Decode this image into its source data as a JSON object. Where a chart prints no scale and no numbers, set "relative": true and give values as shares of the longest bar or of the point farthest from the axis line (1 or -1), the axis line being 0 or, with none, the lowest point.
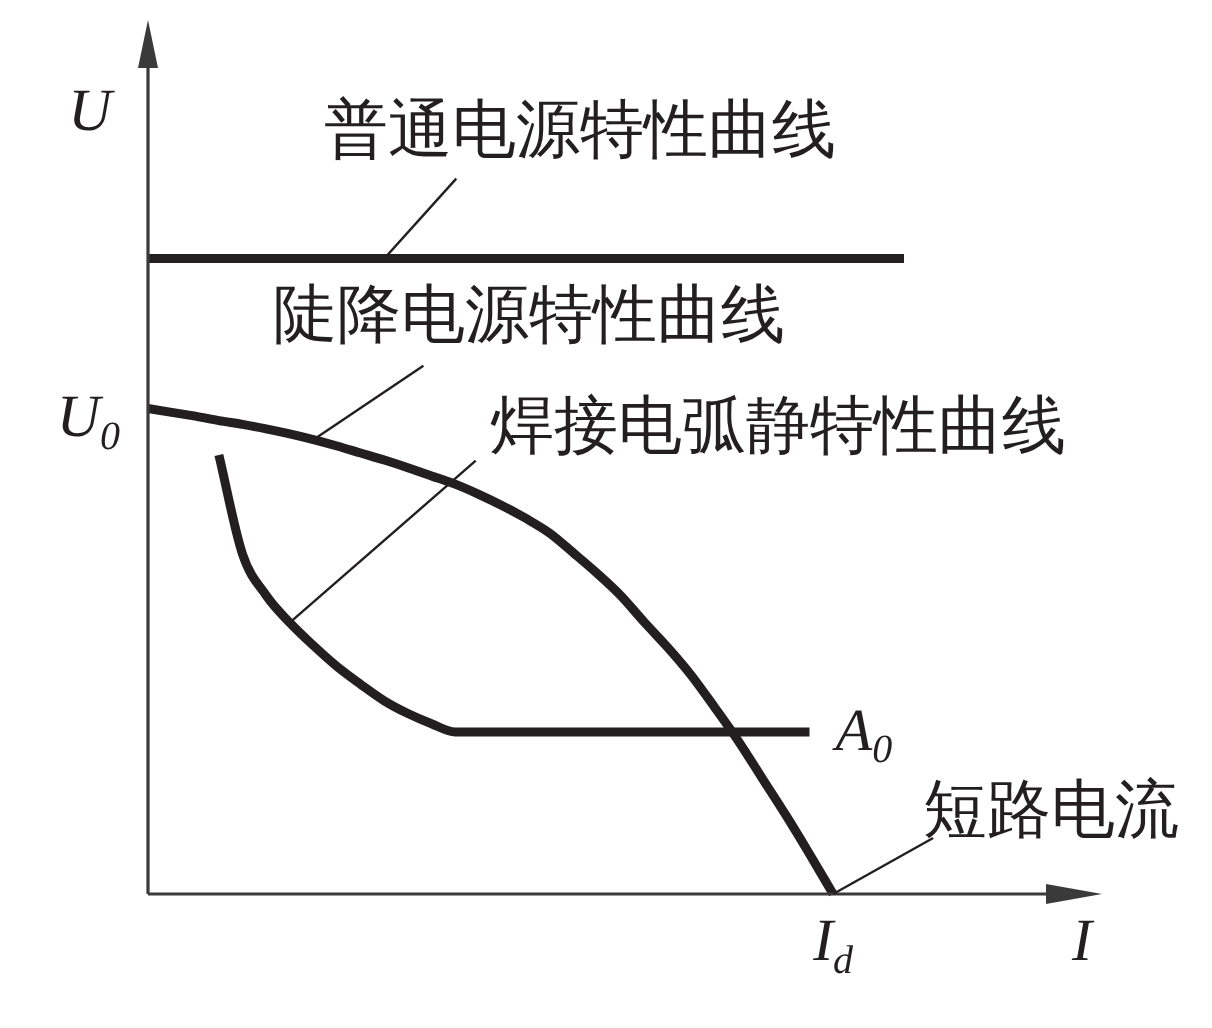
{
  "chart_data": {
    "type": "line",
    "relative": true,
    "xlabel": "I",
    "ylabel": "U",
    "marker": "none",
    "line_style": "solid",
    "categories": [
      null,
      null,
      null,
      null,
      null,
      null,
      null,
      null,
      null,
      null,
      null,
      null,
      null,
      null,
      null,
      null,
      null,
      null,
      null,
      null,
      null,
      null,
      null,
      null,
      null,
      null,
      null,
      null,
      null,
      null,
      null,
      null,
      null
    ],
    "series": [
      {
        "name": "普通电源特性曲线",
        "color": "#231f20",
        "values": [
          1,
          1,
          1,
          1,
          1,
          1,
          1,
          1,
          1,
          1,
          1,
          1,
          1,
          1,
          1,
          1,
          1,
          1,
          1,
          1,
          1,
          1,
          1,
          1,
          1,
          1,
          1,
          1,
          1,
          1,
          1,
          1,
          1
        ]
      },
      {
        "name": "陡降电源特性曲线",
        "color": "#231f20",
        "values": [
          0.764,
          0.758,
          0.752,
          0.745,
          0.739,
          0.732,
          0.724,
          0.715,
          0.705,
          0.694,
          0.683,
          0.671,
          0.658,
          0.645,
          0.629,
          0.611,
          0.591,
          0.568,
          0.537,
          0.505,
          0.47,
          0.428,
          0.388,
          0.344,
          0.293,
          0.24,
          0.182,
          0.124,
          0.063,
          0,
          null,
          null,
          null
        ]
      },
      {
        "name": "焊接电弧静特性曲线",
        "color": "#231f20",
        "values": [
          null,
          null,
          null,
          0.691,
          0.535,
          0.47,
          0.427,
          0.391,
          0.358,
          0.33,
          0.304,
          0.284,
          0.268,
          0.255,
          0.255,
          0.255,
          0.255,
          0.255,
          0.255,
          0.255,
          0.255,
          0.255,
          0.255,
          0.255,
          0.255,
          0.255,
          0.255,
          0.255,
          0.255,
          null,
          null,
          null,
          null
        ]
      }
    ],
    "annotations": [
      "U$_{0}$",
      "A$_{0}$",
      "短路电流",
      "I$_{d}$"
    ]
  }
}
